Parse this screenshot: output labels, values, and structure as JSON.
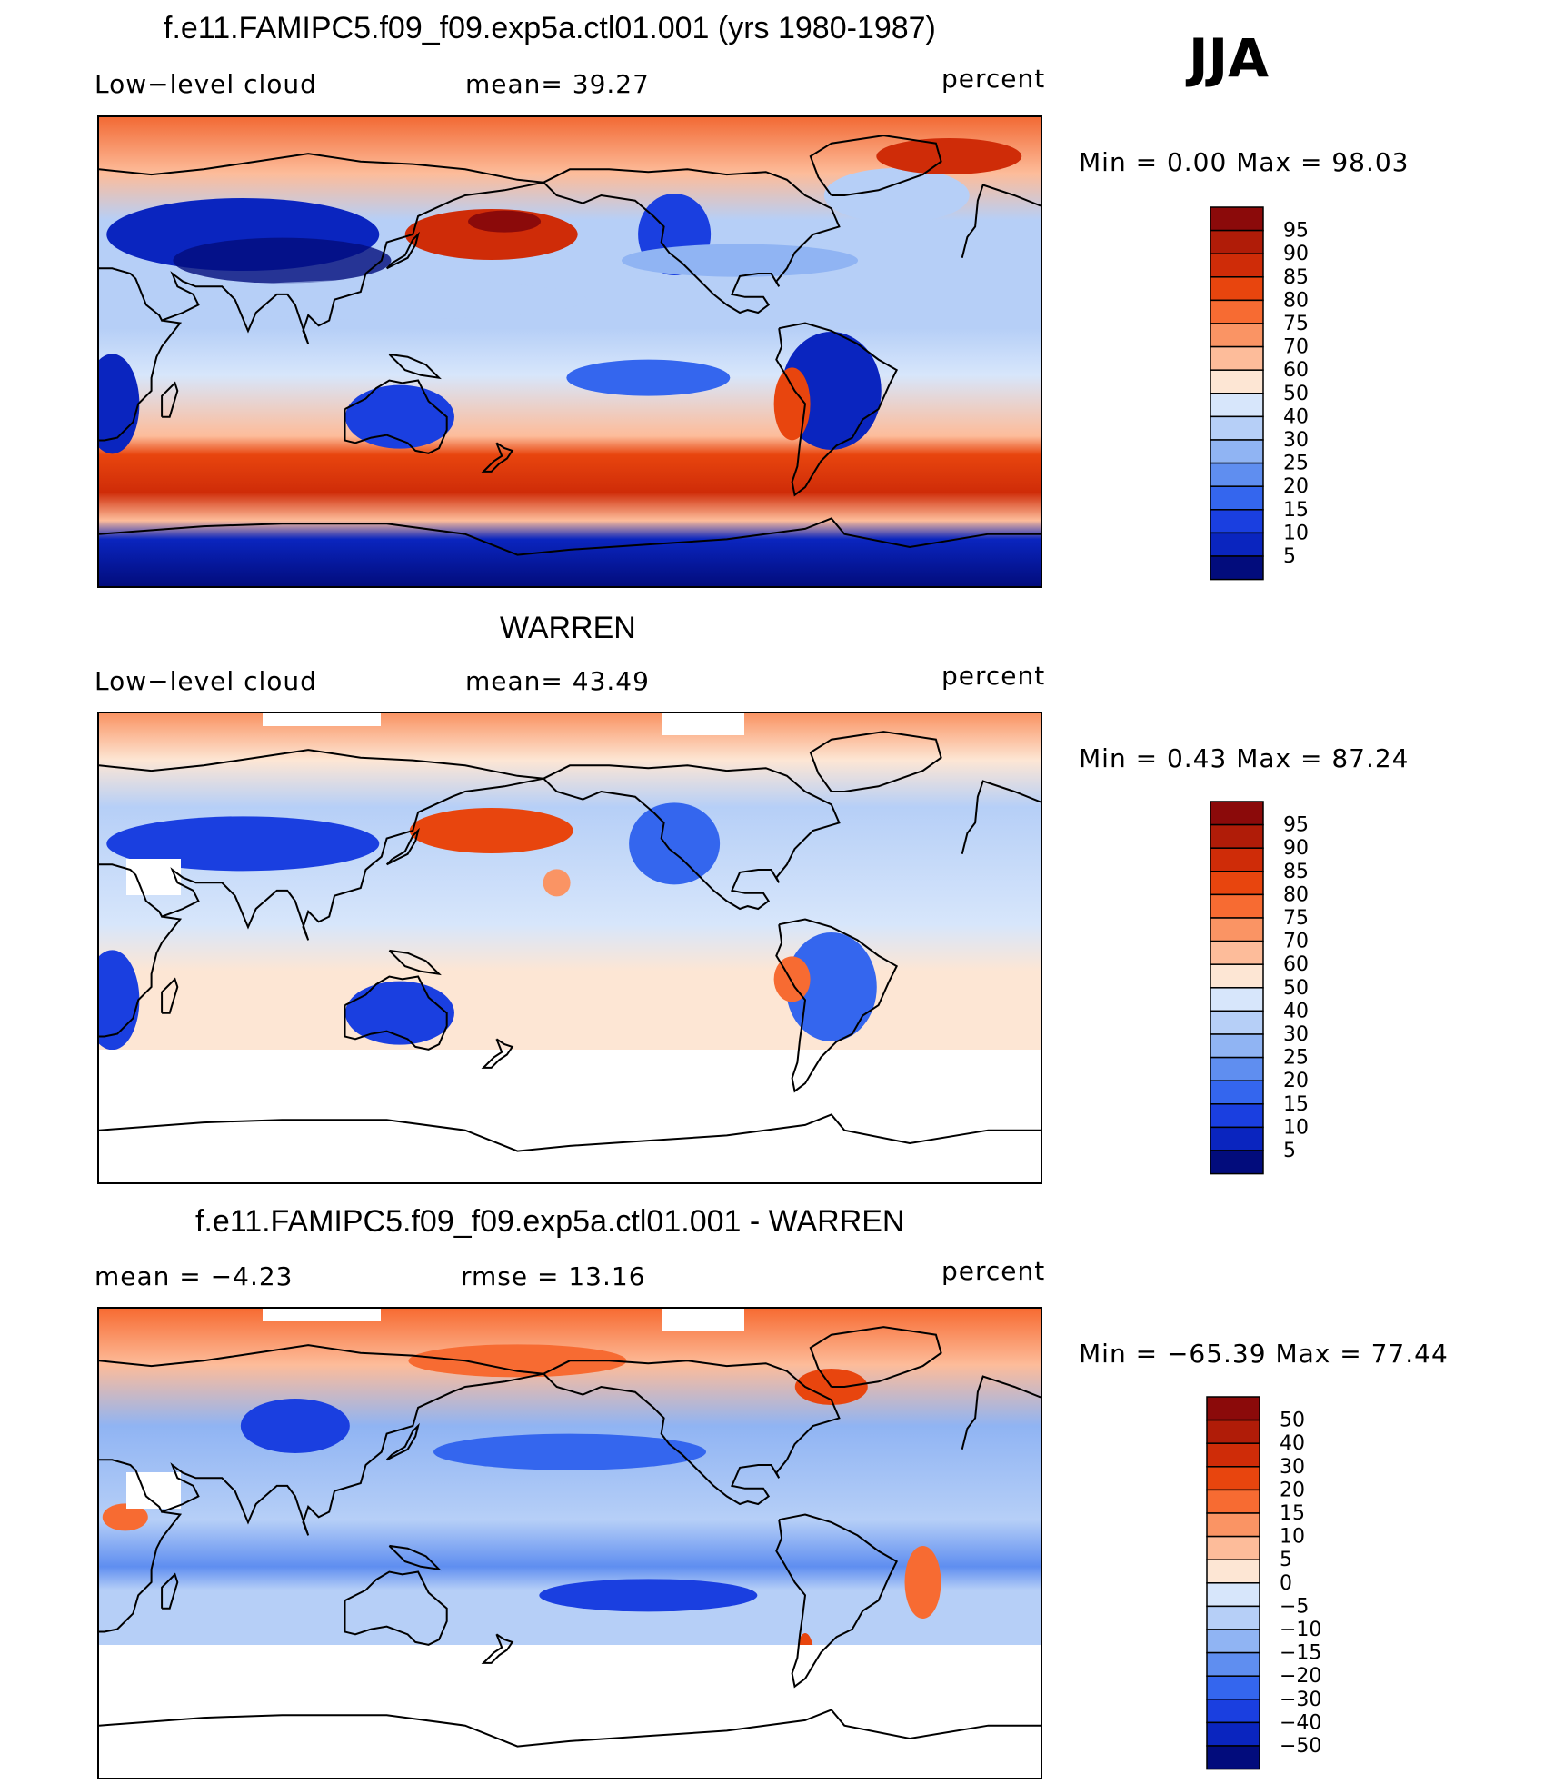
{
  "season": "JJA",
  "panels": [
    {
      "id": "model",
      "title": "f.e11.FAMIPC5.f09_f09.exp5a.ctl01.001 (yrs 1980-1987)",
      "left_label": "Low−level cloud",
      "center_label": "mean=   39.27",
      "right_label": "percent",
      "minmax": "Min  =     0.00  Max  =    98.03",
      "colorbar_labels": [
        "95",
        "90",
        "85",
        "80",
        "75",
        "70",
        "60",
        "50",
        "40",
        "30",
        "25",
        "20",
        "15",
        "10",
        "5"
      ],
      "colorbar_colors": [
        "#8b0a0a",
        "#b01c08",
        "#cf2c08",
        "#e8450e",
        "#f76b32",
        "#fa9464",
        "#fdbc9a",
        "#fde6d4",
        "#d7e6fb",
        "#b6cff7",
        "#90b4f3",
        "#5f8ef0",
        "#3466ee",
        "#1a3fe0",
        "#0a25bf",
        "#020c7c"
      ]
    },
    {
      "id": "obs",
      "title": "WARREN",
      "left_label": "Low−level cloud",
      "center_label": "mean=   43.49",
      "right_label": "percent",
      "minmax": "Min  =     0.43  Max  =    87.24",
      "colorbar_labels": [
        "95",
        "90",
        "85",
        "80",
        "75",
        "70",
        "60",
        "50",
        "40",
        "30",
        "25",
        "20",
        "15",
        "10",
        "5"
      ],
      "colorbar_colors": [
        "#8b0a0a",
        "#b01c08",
        "#cf2c08",
        "#e8450e",
        "#f76b32",
        "#fa9464",
        "#fdbc9a",
        "#fde6d4",
        "#d7e6fb",
        "#b6cff7",
        "#90b4f3",
        "#5f8ef0",
        "#3466ee",
        "#1a3fe0",
        "#0a25bf",
        "#020c7c"
      ]
    },
    {
      "id": "diff",
      "title": "f.e11.FAMIPC5.f09_f09.exp5a.ctl01.001 - WARREN",
      "left_label": "mean  =    −4.23",
      "center_label": "rmse  =    13.16",
      "right_label": "percent",
      "minmax": "Min  = −65.39  Max  =    77.44",
      "colorbar_labels": [
        "50",
        "40",
        "30",
        "20",
        "15",
        "10",
        "5",
        "0",
        "−5",
        "−10",
        "−15",
        "−20",
        "−30",
        "−40",
        "−50"
      ],
      "colorbar_colors": [
        "#8b0a0a",
        "#b01c08",
        "#cf2c08",
        "#e8450e",
        "#f76b32",
        "#fa9464",
        "#fdbc9a",
        "#fde6d4",
        "#d7e6fb",
        "#b6cff7",
        "#90b4f3",
        "#5f8ef0",
        "#3466ee",
        "#1a3fe0",
        "#0a25bf",
        "#020c7c"
      ]
    }
  ],
  "chart_data": [
    {
      "type": "heatmap",
      "title": "f.e11.FAMIPC5.f09_f09.exp5a.ctl01.001 (yrs 1980-1987)",
      "variable": "Low−level cloud",
      "units": "percent",
      "mean": 39.27,
      "min": 0.0,
      "max": 98.03,
      "contour_levels": [
        5,
        10,
        15,
        20,
        25,
        30,
        40,
        50,
        60,
        70,
        75,
        80,
        85,
        90,
        95
      ]
    },
    {
      "type": "heatmap",
      "title": "WARREN",
      "variable": "Low−level cloud",
      "units": "percent",
      "mean": 43.49,
      "min": 0.43,
      "max": 87.24,
      "contour_levels": [
        5,
        10,
        15,
        20,
        25,
        30,
        40,
        50,
        60,
        70,
        75,
        80,
        85,
        90,
        95
      ]
    },
    {
      "type": "heatmap",
      "title": "f.e11.FAMIPC5.f09_f09.exp5a.ctl01.001 - WARREN",
      "units": "percent",
      "mean": -4.23,
      "rmse": 13.16,
      "min": -65.39,
      "max": 77.44,
      "contour_levels": [
        -50,
        -40,
        -30,
        -20,
        -15,
        -10,
        -5,
        0,
        5,
        10,
        15,
        20,
        30,
        40,
        50
      ]
    }
  ]
}
